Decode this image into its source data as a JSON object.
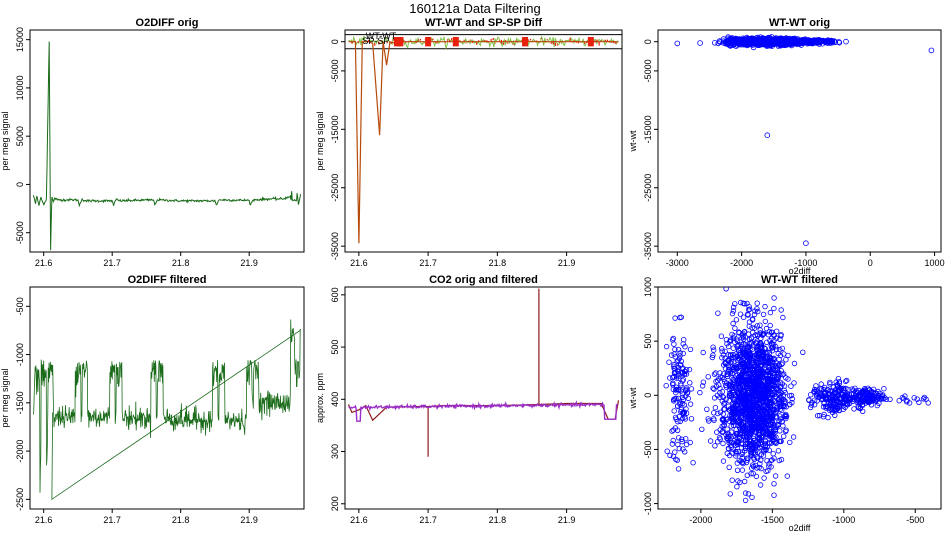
{
  "suptitle": "160121a   Data Filtering",
  "colors": {
    "green": "#1a6b1a",
    "red": "#e8200c",
    "brown": "#b84a0a",
    "lightgreen": "#7fc24a",
    "blue": "#0000ff",
    "purple": "#9b30c8",
    "darkred": "#8b1a1a",
    "black": "#000000"
  },
  "chart_data": [
    {
      "type": "line",
      "title": "O2DIFF orig",
      "xlabel": "",
      "ylabel": "per meg signal",
      "xlim": [
        21.58,
        21.98
      ],
      "ylim": [
        -7000,
        16000
      ],
      "xticks": [
        "21.6",
        "21.7",
        "21.8",
        "21.9"
      ],
      "xtick_values": [
        21.6,
        21.7,
        21.8,
        21.9
      ],
      "yticks": [
        "-5000",
        "0",
        "5000",
        "10000",
        "15000"
      ],
      "ytick_values": [
        -5000,
        0,
        5000,
        10000,
        15000
      ],
      "grid": false,
      "series": [
        {
          "color": "#1a6b1a",
          "x": [
            21.585,
            21.588,
            21.59,
            21.593,
            21.596,
            21.6,
            21.604,
            21.608,
            21.61,
            21.612,
            21.614,
            21.616,
            21.62,
            21.65,
            21.652,
            21.656,
            21.66,
            21.7,
            21.702,
            21.706,
            21.71,
            21.76,
            21.762,
            21.766,
            21.8,
            21.85,
            21.852,
            21.856,
            21.9,
            21.902,
            21.906,
            21.93,
            21.95,
            21.96,
            21.962,
            21.97,
            21.972,
            21.975
          ],
          "y": [
            -1100,
            -2000,
            -1200,
            -2200,
            -1300,
            -2100,
            -1500,
            14800,
            -6800,
            -1300,
            -1800,
            -1400,
            -1600,
            -1600,
            -2200,
            -1500,
            -1700,
            -1700,
            -2200,
            -1500,
            -1700,
            -1600,
            -2100,
            -1600,
            -1700,
            -1700,
            -2100,
            -1600,
            -1650,
            -2100,
            -1600,
            -1500,
            -1500,
            -1200,
            -700,
            -900,
            -2100,
            -1000
          ]
        }
      ]
    },
    {
      "type": "line",
      "title": "WT-WT and SP-SP Diff",
      "xlabel": "",
      "ylabel": "per meg signal",
      "xlim": [
        21.58,
        21.98
      ],
      "ylim": [
        -36000,
        2000
      ],
      "xticks": [
        "21.6",
        "21.7",
        "21.8",
        "21.9"
      ],
      "xtick_values": [
        21.6,
        21.7,
        21.8,
        21.9
      ],
      "yticks": [
        "-35000",
        "-25000",
        "-15000",
        "-5000",
        "0"
      ],
      "ytick_values": [
        -35000,
        -25000,
        -15000,
        -5000,
        0
      ],
      "hlines": [
        1200,
        -1200
      ],
      "annotations": [
        {
          "text": "WT-WT",
          "x": 21.61,
          "y": 500
        },
        {
          "text": "SP-SP",
          "x": 21.605,
          "y": -400
        }
      ],
      "series": [
        {
          "color": "#b84a0a",
          "x": [
            21.585,
            21.595,
            21.6,
            21.605,
            21.615,
            21.62,
            21.63,
            21.635,
            21.64,
            21.645,
            21.65,
            21.66,
            21.7,
            21.75,
            21.8,
            21.85,
            21.9,
            21.95,
            21.975
          ],
          "y": [
            0,
            0,
            -34500,
            0,
            0,
            -300,
            -16000,
            0,
            -4000,
            0,
            -200,
            0,
            0,
            0,
            0,
            0,
            0,
            0,
            0
          ]
        },
        {
          "color": "#7fc24a",
          "x": [
            21.585,
            21.6,
            21.62,
            21.64,
            21.66,
            21.7,
            21.75,
            21.8,
            21.85,
            21.9,
            21.95,
            21.975
          ],
          "y": [
            300,
            -200,
            400,
            -300,
            300,
            -200,
            350,
            -250,
            300,
            -200,
            300,
            0
          ]
        }
      ]
    },
    {
      "type": "scatter",
      "title": "WT-WT orig",
      "xlabel": "o2diff",
      "ylabel": "wt-wt",
      "xlim": [
        -3300,
        1100
      ],
      "ylim": [
        -36000,
        2000
      ],
      "xticks": [
        "-3000",
        "-2000",
        "-1000",
        "0",
        "1000"
      ],
      "xtick_values": [
        -3000,
        -2000,
        -1000,
        0,
        1000
      ],
      "yticks": [
        "-35000",
        "-25000",
        "-15000",
        "-5000",
        "0"
      ],
      "ytick_values": [
        -35000,
        -25000,
        -15000,
        -5000,
        0
      ],
      "outliers": [
        {
          "x": -3000,
          "y": -300
        },
        {
          "x": 950,
          "y": -1500
        },
        {
          "x": -1600,
          "y": -16000
        },
        {
          "x": -1000,
          "y": -34500
        }
      ]
    },
    {
      "type": "line",
      "title": "O2DIFF filtered",
      "xlabel": "",
      "ylabel": "per meg signal",
      "xlim": [
        21.58,
        21.98
      ],
      "ylim": [
        -2600,
        -300
      ],
      "xticks": [
        "21.6",
        "21.7",
        "21.8",
        "21.9"
      ],
      "xtick_values": [
        21.6,
        21.7,
        21.8,
        21.9
      ],
      "yticks": [
        "-2500",
        "-2000",
        "-1500",
        "-1000",
        "-500"
      ],
      "ytick_values": [
        -2500,
        -2000,
        -1500,
        -1000,
        -500
      ],
      "series": [
        {
          "color": "#1a6b1a"
        }
      ]
    },
    {
      "type": "line",
      "title": "CO2 orig and filtered",
      "xlabel": "",
      "ylabel": "approx. ppm",
      "xlim": [
        21.58,
        21.98
      ],
      "ylim": [
        190,
        615
      ],
      "xticks": [
        "21.6",
        "21.7",
        "21.8",
        "21.9"
      ],
      "xtick_values": [
        21.6,
        21.7,
        21.8,
        21.9
      ],
      "yticks": [
        "200",
        "300",
        "400",
        "500",
        "600"
      ],
      "ytick_values": [
        200,
        300,
        400,
        500,
        600
      ],
      "series": [
        {
          "color": "#8b1a1a",
          "x": [
            21.585,
            21.59,
            21.6,
            21.61,
            21.62,
            21.64,
            21.68,
            21.7,
            21.7,
            21.7,
            21.72,
            21.8,
            21.86,
            21.86,
            21.86,
            21.9,
            21.95,
            21.96,
            21.97,
            21.975
          ],
          "y": [
            390,
            375,
            380,
            388,
            360,
            385,
            386,
            386,
            290,
            386,
            388,
            388,
            390,
            612,
            390,
            392,
            392,
            362,
            362,
            398
          ]
        },
        {
          "color": "#9b30c8",
          "x": [
            21.585,
            21.59,
            21.595,
            21.6,
            21.61,
            21.62,
            21.64,
            21.68,
            21.72,
            21.8,
            21.86,
            21.9,
            21.95,
            21.96,
            21.97,
            21.975
          ],
          "y": [
            392,
            370,
            395,
            358,
            385,
            380,
            385,
            386,
            388,
            388,
            390,
            392,
            392,
            362,
            362,
            400
          ]
        }
      ]
    },
    {
      "type": "scatter",
      "title": "WT-WT filtered",
      "xlabel": "o2diff",
      "ylabel": "wt-wt",
      "xlim": [
        -2300,
        -320
      ],
      "ylim": [
        -1050,
        1000
      ],
      "xticks": [
        "-2000",
        "-1500",
        "-1000",
        "-500"
      ],
      "xtick_values": [
        -2000,
        -1500,
        -1000,
        -500
      ],
      "yticks": [
        "-1000",
        "-500",
        "0",
        "500",
        "1000"
      ],
      "ytick_values": [
        -1000,
        -500,
        0,
        500,
        1000
      ],
      "clusters": [
        {
          "cx": -2150,
          "cy": 0,
          "sx": 40,
          "sy": 300,
          "n": 140
        },
        {
          "cx": -1650,
          "cy": 0,
          "sx": 110,
          "sy": 330,
          "n": 1400
        },
        {
          "cx": -1520,
          "cy": 0,
          "sx": 60,
          "sy": 250,
          "n": 200
        },
        {
          "cx": -1080,
          "cy": -40,
          "sx": 70,
          "sy": 80,
          "n": 180
        },
        {
          "cx": -860,
          "cy": -20,
          "sx": 70,
          "sy": 40,
          "n": 160
        },
        {
          "cx": -500,
          "cy": -40,
          "sx": 70,
          "sy": 30,
          "n": 14
        }
      ]
    }
  ]
}
